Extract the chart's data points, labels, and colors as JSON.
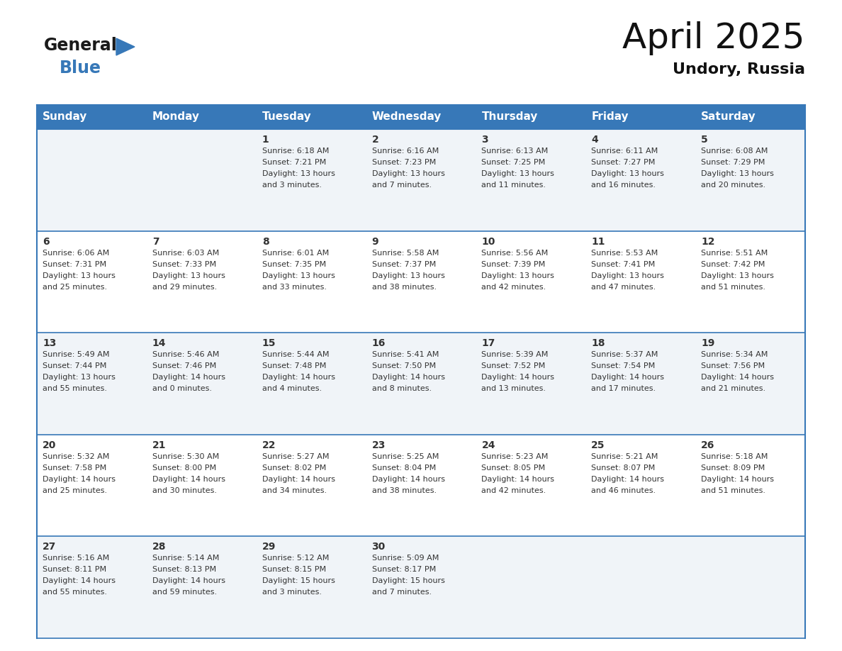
{
  "title": "April 2025",
  "subtitle": "Undory, Russia",
  "header_color": "#3778b8",
  "header_text_color": "#ffffff",
  "border_color": "#3778b8",
  "text_color": "#333333",
  "days_of_week": [
    "Sunday",
    "Monday",
    "Tuesday",
    "Wednesday",
    "Thursday",
    "Friday",
    "Saturday"
  ],
  "calendar": [
    [
      {
        "day": "",
        "sunrise": "",
        "sunset": "",
        "daylight_line1": "",
        "daylight_line2": ""
      },
      {
        "day": "",
        "sunrise": "",
        "sunset": "",
        "daylight_line1": "",
        "daylight_line2": ""
      },
      {
        "day": "1",
        "sunrise": "Sunrise: 6:18 AM",
        "sunset": "Sunset: 7:21 PM",
        "daylight_line1": "Daylight: 13 hours",
        "daylight_line2": "and 3 minutes."
      },
      {
        "day": "2",
        "sunrise": "Sunrise: 6:16 AM",
        "sunset": "Sunset: 7:23 PM",
        "daylight_line1": "Daylight: 13 hours",
        "daylight_line2": "and 7 minutes."
      },
      {
        "day": "3",
        "sunrise": "Sunrise: 6:13 AM",
        "sunset": "Sunset: 7:25 PM",
        "daylight_line1": "Daylight: 13 hours",
        "daylight_line2": "and 11 minutes."
      },
      {
        "day": "4",
        "sunrise": "Sunrise: 6:11 AM",
        "sunset": "Sunset: 7:27 PM",
        "daylight_line1": "Daylight: 13 hours",
        "daylight_line2": "and 16 minutes."
      },
      {
        "day": "5",
        "sunrise": "Sunrise: 6:08 AM",
        "sunset": "Sunset: 7:29 PM",
        "daylight_line1": "Daylight: 13 hours",
        "daylight_line2": "and 20 minutes."
      }
    ],
    [
      {
        "day": "6",
        "sunrise": "Sunrise: 6:06 AM",
        "sunset": "Sunset: 7:31 PM",
        "daylight_line1": "Daylight: 13 hours",
        "daylight_line2": "and 25 minutes."
      },
      {
        "day": "7",
        "sunrise": "Sunrise: 6:03 AM",
        "sunset": "Sunset: 7:33 PM",
        "daylight_line1": "Daylight: 13 hours",
        "daylight_line2": "and 29 minutes."
      },
      {
        "day": "8",
        "sunrise": "Sunrise: 6:01 AM",
        "sunset": "Sunset: 7:35 PM",
        "daylight_line1": "Daylight: 13 hours",
        "daylight_line2": "and 33 minutes."
      },
      {
        "day": "9",
        "sunrise": "Sunrise: 5:58 AM",
        "sunset": "Sunset: 7:37 PM",
        "daylight_line1": "Daylight: 13 hours",
        "daylight_line2": "and 38 minutes."
      },
      {
        "day": "10",
        "sunrise": "Sunrise: 5:56 AM",
        "sunset": "Sunset: 7:39 PM",
        "daylight_line1": "Daylight: 13 hours",
        "daylight_line2": "and 42 minutes."
      },
      {
        "day": "11",
        "sunrise": "Sunrise: 5:53 AM",
        "sunset": "Sunset: 7:41 PM",
        "daylight_line1": "Daylight: 13 hours",
        "daylight_line2": "and 47 minutes."
      },
      {
        "day": "12",
        "sunrise": "Sunrise: 5:51 AM",
        "sunset": "Sunset: 7:42 PM",
        "daylight_line1": "Daylight: 13 hours",
        "daylight_line2": "and 51 minutes."
      }
    ],
    [
      {
        "day": "13",
        "sunrise": "Sunrise: 5:49 AM",
        "sunset": "Sunset: 7:44 PM",
        "daylight_line1": "Daylight: 13 hours",
        "daylight_line2": "and 55 minutes."
      },
      {
        "day": "14",
        "sunrise": "Sunrise: 5:46 AM",
        "sunset": "Sunset: 7:46 PM",
        "daylight_line1": "Daylight: 14 hours",
        "daylight_line2": "and 0 minutes."
      },
      {
        "day": "15",
        "sunrise": "Sunrise: 5:44 AM",
        "sunset": "Sunset: 7:48 PM",
        "daylight_line1": "Daylight: 14 hours",
        "daylight_line2": "and 4 minutes."
      },
      {
        "day": "16",
        "sunrise": "Sunrise: 5:41 AM",
        "sunset": "Sunset: 7:50 PM",
        "daylight_line1": "Daylight: 14 hours",
        "daylight_line2": "and 8 minutes."
      },
      {
        "day": "17",
        "sunrise": "Sunrise: 5:39 AM",
        "sunset": "Sunset: 7:52 PM",
        "daylight_line1": "Daylight: 14 hours",
        "daylight_line2": "and 13 minutes."
      },
      {
        "day": "18",
        "sunrise": "Sunrise: 5:37 AM",
        "sunset": "Sunset: 7:54 PM",
        "daylight_line1": "Daylight: 14 hours",
        "daylight_line2": "and 17 minutes."
      },
      {
        "day": "19",
        "sunrise": "Sunrise: 5:34 AM",
        "sunset": "Sunset: 7:56 PM",
        "daylight_line1": "Daylight: 14 hours",
        "daylight_line2": "and 21 minutes."
      }
    ],
    [
      {
        "day": "20",
        "sunrise": "Sunrise: 5:32 AM",
        "sunset": "Sunset: 7:58 PM",
        "daylight_line1": "Daylight: 14 hours",
        "daylight_line2": "and 25 minutes."
      },
      {
        "day": "21",
        "sunrise": "Sunrise: 5:30 AM",
        "sunset": "Sunset: 8:00 PM",
        "daylight_line1": "Daylight: 14 hours",
        "daylight_line2": "and 30 minutes."
      },
      {
        "day": "22",
        "sunrise": "Sunrise: 5:27 AM",
        "sunset": "Sunset: 8:02 PM",
        "daylight_line1": "Daylight: 14 hours",
        "daylight_line2": "and 34 minutes."
      },
      {
        "day": "23",
        "sunrise": "Sunrise: 5:25 AM",
        "sunset": "Sunset: 8:04 PM",
        "daylight_line1": "Daylight: 14 hours",
        "daylight_line2": "and 38 minutes."
      },
      {
        "day": "24",
        "sunrise": "Sunrise: 5:23 AM",
        "sunset": "Sunset: 8:05 PM",
        "daylight_line1": "Daylight: 14 hours",
        "daylight_line2": "and 42 minutes."
      },
      {
        "day": "25",
        "sunrise": "Sunrise: 5:21 AM",
        "sunset": "Sunset: 8:07 PM",
        "daylight_line1": "Daylight: 14 hours",
        "daylight_line2": "and 46 minutes."
      },
      {
        "day": "26",
        "sunrise": "Sunrise: 5:18 AM",
        "sunset": "Sunset: 8:09 PM",
        "daylight_line1": "Daylight: 14 hours",
        "daylight_line2": "and 51 minutes."
      }
    ],
    [
      {
        "day": "27",
        "sunrise": "Sunrise: 5:16 AM",
        "sunset": "Sunset: 8:11 PM",
        "daylight_line1": "Daylight: 14 hours",
        "daylight_line2": "and 55 minutes."
      },
      {
        "day": "28",
        "sunrise": "Sunrise: 5:14 AM",
        "sunset": "Sunset: 8:13 PM",
        "daylight_line1": "Daylight: 14 hours",
        "daylight_line2": "and 59 minutes."
      },
      {
        "day": "29",
        "sunrise": "Sunrise: 5:12 AM",
        "sunset": "Sunset: 8:15 PM",
        "daylight_line1": "Daylight: 15 hours",
        "daylight_line2": "and 3 minutes."
      },
      {
        "day": "30",
        "sunrise": "Sunrise: 5:09 AM",
        "sunset": "Sunset: 8:17 PM",
        "daylight_line1": "Daylight: 15 hours",
        "daylight_line2": "and 7 minutes."
      },
      {
        "day": "",
        "sunrise": "",
        "sunset": "",
        "daylight_line1": "",
        "daylight_line2": ""
      },
      {
        "day": "",
        "sunrise": "",
        "sunset": "",
        "daylight_line1": "",
        "daylight_line2": ""
      },
      {
        "day": "",
        "sunrise": "",
        "sunset": "",
        "daylight_line1": "",
        "daylight_line2": ""
      }
    ]
  ],
  "logo_general_color": "#1a1a1a",
  "logo_blue_color": "#3778b8",
  "logo_triangle_color": "#3778b8",
  "title_fontsize": 36,
  "subtitle_fontsize": 16,
  "header_fontsize": 11,
  "day_num_fontsize": 10,
  "cell_text_fontsize": 8
}
